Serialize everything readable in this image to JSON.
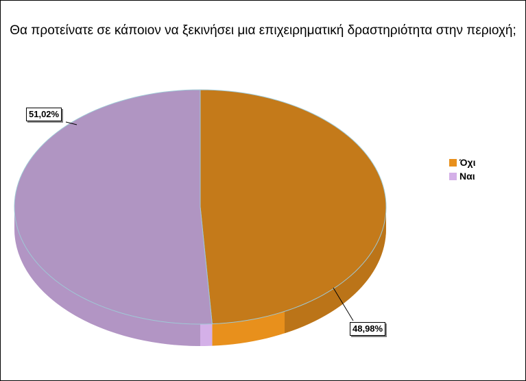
{
  "chart_data": {
    "type": "pie",
    "title": "Θα προτείνατε σε κάποιον να ξεκινήσει μια επιχειρηματική δραστηριότητα στην περιοχή;",
    "categories": [
      "Όχι",
      "Ναι"
    ],
    "values": [
      48.98,
      51.02
    ],
    "data_labels": [
      "48,98%",
      "51,02%"
    ],
    "colors": [
      "#C47A1A",
      "#B095C2"
    ],
    "legend_colors": [
      "#E8901C",
      "#D4B0E8"
    ],
    "legend_position": "right",
    "three_d": true
  }
}
